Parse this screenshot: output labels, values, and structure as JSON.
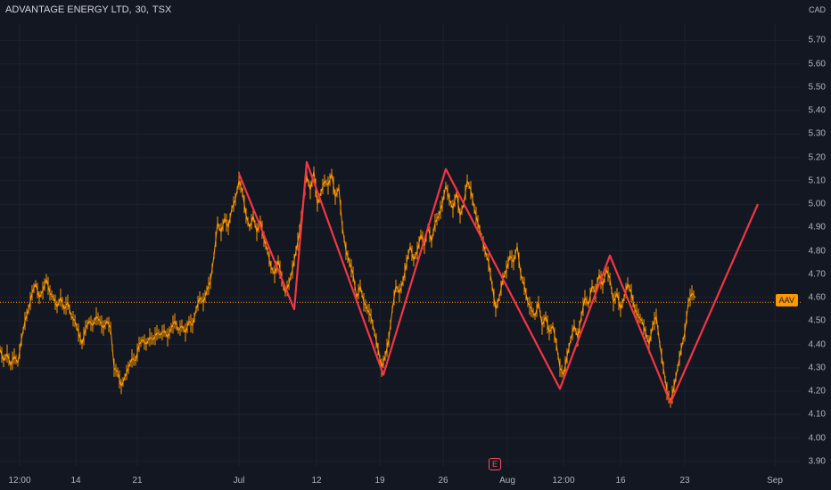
{
  "header": {
    "symbol_name": "ADVANTAGE ENERGY LTD",
    "interval": "30",
    "exchange": "TSX"
  },
  "currency_label": "CAD",
  "last_price_tag": "AAV",
  "earnings_marker": "E",
  "colors": {
    "background": "#131722",
    "price_series": "#ff9800",
    "zigzag": "#f23645",
    "last_price_line": "#ff9800",
    "grid": "#1e222d",
    "text": "#b2b5be"
  },
  "chart_data": {
    "type": "line",
    "y_axis": {
      "ticks": [
        "5.70",
        "5.60",
        "5.50",
        "5.40",
        "5.30",
        "5.20",
        "5.10",
        "5.00",
        "4.90",
        "4.80",
        "4.70",
        "4.60",
        "4.50",
        "4.40",
        "4.30",
        "4.20",
        "4.10",
        "4.00",
        "3.90"
      ],
      "ylim": [
        3.88,
        5.77
      ]
    },
    "x_axis": {
      "ticks": [
        "12:00",
        "14",
        "21",
        "Jul",
        "12",
        "19",
        "26",
        "Aug",
        "12:00",
        "16",
        "23",
        "Sep"
      ]
    },
    "last_price": 4.58,
    "series": [
      {
        "style": "price",
        "points": [
          [
            0,
            4.38
          ],
          [
            4,
            4.33
          ],
          [
            8,
            4.36
          ],
          [
            12,
            4.31
          ],
          [
            16,
            4.35
          ],
          [
            20,
            4.32
          ],
          [
            24,
            4.42
          ],
          [
            28,
            4.5
          ],
          [
            32,
            4.55
          ],
          [
            36,
            4.62
          ],
          [
            40,
            4.66
          ],
          [
            44,
            4.6
          ],
          [
            48,
            4.63
          ],
          [
            52,
            4.68
          ],
          [
            56,
            4.62
          ],
          [
            60,
            4.6
          ],
          [
            64,
            4.56
          ],
          [
            68,
            4.6
          ],
          [
            72,
            4.55
          ],
          [
            76,
            4.58
          ],
          [
            80,
            4.52
          ],
          [
            84,
            4.5
          ],
          [
            88,
            4.45
          ],
          [
            92,
            4.4
          ],
          [
            96,
            4.47
          ],
          [
            100,
            4.5
          ],
          [
            104,
            4.48
          ],
          [
            108,
            4.52
          ],
          [
            112,
            4.5
          ],
          [
            116,
            4.47
          ],
          [
            120,
            4.5
          ],
          [
            124,
            4.47
          ],
          [
            128,
            4.3
          ],
          [
            132,
            4.28
          ],
          [
            136,
            4.22
          ],
          [
            140,
            4.26
          ],
          [
            144,
            4.3
          ],
          [
            148,
            4.34
          ],
          [
            152,
            4.33
          ],
          [
            156,
            4.4
          ],
          [
            160,
            4.42
          ],
          [
            164,
            4.4
          ],
          [
            168,
            4.43
          ],
          [
            172,
            4.42
          ],
          [
            176,
            4.45
          ],
          [
            180,
            4.44
          ],
          [
            184,
            4.46
          ],
          [
            188,
            4.43
          ],
          [
            192,
            4.47
          ],
          [
            196,
            4.5
          ],
          [
            200,
            4.46
          ],
          [
            204,
            4.48
          ],
          [
            208,
            4.45
          ],
          [
            212,
            4.5
          ],
          [
            216,
            4.48
          ],
          [
            220,
            4.55
          ],
          [
            224,
            4.6
          ],
          [
            228,
            4.58
          ],
          [
            232,
            4.63
          ],
          [
            236,
            4.67
          ],
          [
            240,
            4.78
          ],
          [
            244,
            4.92
          ],
          [
            248,
            4.88
          ],
          [
            252,
            4.94
          ],
          [
            256,
            4.9
          ],
          [
            260,
            4.98
          ],
          [
            264,
            5.02
          ],
          [
            268,
            5.1
          ],
          [
            272,
            5.05
          ],
          [
            276,
            4.95
          ],
          [
            280,
            4.9
          ],
          [
            284,
            4.95
          ],
          [
            288,
            4.88
          ],
          [
            292,
            4.93
          ],
          [
            296,
            4.85
          ],
          [
            300,
            4.8
          ],
          [
            304,
            4.73
          ],
          [
            308,
            4.7
          ],
          [
            312,
            4.76
          ],
          [
            316,
            4.68
          ],
          [
            320,
            4.62
          ],
          [
            324,
            4.66
          ],
          [
            328,
            4.72
          ],
          [
            332,
            4.8
          ],
          [
            336,
            4.88
          ],
          [
            340,
            5.02
          ],
          [
            344,
            5.12
          ],
          [
            348,
            5.06
          ],
          [
            352,
            5.14
          ],
          [
            356,
            5.0
          ],
          [
            360,
            5.05
          ],
          [
            364,
            5.1
          ],
          [
            368,
            5.08
          ],
          [
            372,
            5.13
          ],
          [
            376,
            5.03
          ],
          [
            380,
            5.07
          ],
          [
            384,
            4.9
          ],
          [
            388,
            4.8
          ],
          [
            392,
            4.75
          ],
          [
            396,
            4.7
          ],
          [
            400,
            4.6
          ],
          [
            404,
            4.65
          ],
          [
            408,
            4.58
          ],
          [
            412,
            4.55
          ],
          [
            416,
            4.52
          ],
          [
            420,
            4.45
          ],
          [
            424,
            4.38
          ],
          [
            428,
            4.3
          ],
          [
            432,
            4.35
          ],
          [
            436,
            4.42
          ],
          [
            440,
            4.55
          ],
          [
            444,
            4.65
          ],
          [
            448,
            4.62
          ],
          [
            452,
            4.67
          ],
          [
            456,
            4.75
          ],
          [
            460,
            4.82
          ],
          [
            464,
            4.76
          ],
          [
            468,
            4.8
          ],
          [
            472,
            4.87
          ],
          [
            476,
            4.82
          ],
          [
            480,
            4.9
          ],
          [
            484,
            4.84
          ],
          [
            488,
            4.92
          ],
          [
            492,
            4.95
          ],
          [
            496,
            5.0
          ],
          [
            500,
            5.08
          ],
          [
            504,
            5.02
          ],
          [
            508,
            4.98
          ],
          [
            512,
            5.05
          ],
          [
            516,
            4.95
          ],
          [
            520,
            5.0
          ],
          [
            524,
            5.1
          ],
          [
            528,
            5.06
          ],
          [
            532,
            4.98
          ],
          [
            536,
            4.92
          ],
          [
            540,
            4.86
          ],
          [
            544,
            4.8
          ],
          [
            548,
            4.75
          ],
          [
            552,
            4.65
          ],
          [
            556,
            4.55
          ],
          [
            560,
            4.6
          ],
          [
            564,
            4.68
          ],
          [
            568,
            4.72
          ],
          [
            572,
            4.78
          ],
          [
            576,
            4.75
          ],
          [
            580,
            4.82
          ],
          [
            584,
            4.7
          ],
          [
            588,
            4.65
          ],
          [
            592,
            4.58
          ],
          [
            596,
            4.55
          ],
          [
            600,
            4.52
          ],
          [
            604,
            4.58
          ],
          [
            608,
            4.48
          ],
          [
            612,
            4.52
          ],
          [
            616,
            4.45
          ],
          [
            620,
            4.48
          ],
          [
            624,
            4.4
          ],
          [
            628,
            4.3
          ],
          [
            632,
            4.27
          ],
          [
            636,
            4.35
          ],
          [
            640,
            4.42
          ],
          [
            644,
            4.48
          ],
          [
            648,
            4.43
          ],
          [
            652,
            4.52
          ],
          [
            656,
            4.6
          ],
          [
            660,
            4.57
          ],
          [
            664,
            4.65
          ],
          [
            668,
            4.62
          ],
          [
            672,
            4.7
          ],
          [
            676,
            4.65
          ],
          [
            680,
            4.72
          ],
          [
            684,
            4.68
          ],
          [
            688,
            4.58
          ],
          [
            692,
            4.62
          ],
          [
            696,
            4.55
          ],
          [
            700,
            4.6
          ],
          [
            704,
            4.66
          ],
          [
            708,
            4.62
          ],
          [
            712,
            4.55
          ],
          [
            716,
            4.52
          ],
          [
            720,
            4.5
          ],
          [
            724,
            4.45
          ],
          [
            728,
            4.4
          ],
          [
            732,
            4.48
          ],
          [
            736,
            4.52
          ],
          [
            740,
            4.4
          ],
          [
            744,
            4.3
          ],
          [
            748,
            4.2
          ],
          [
            752,
            4.15
          ],
          [
            756,
            4.22
          ],
          [
            760,
            4.3
          ],
          [
            764,
            4.38
          ],
          [
            768,
            4.45
          ],
          [
            772,
            4.58
          ],
          [
            776,
            4.62
          ],
          [
            780,
            4.6
          ]
        ]
      },
      {
        "style": "zigzag",
        "points": [
          [
            268,
            5.13
          ],
          [
            330,
            4.55
          ],
          [
            344,
            5.18
          ],
          [
            430,
            4.27
          ],
          [
            500,
            5.15
          ],
          [
            628,
            4.21
          ],
          [
            684,
            4.78
          ],
          [
            752,
            4.15
          ],
          [
            850,
            5.0
          ]
        ]
      }
    ]
  }
}
